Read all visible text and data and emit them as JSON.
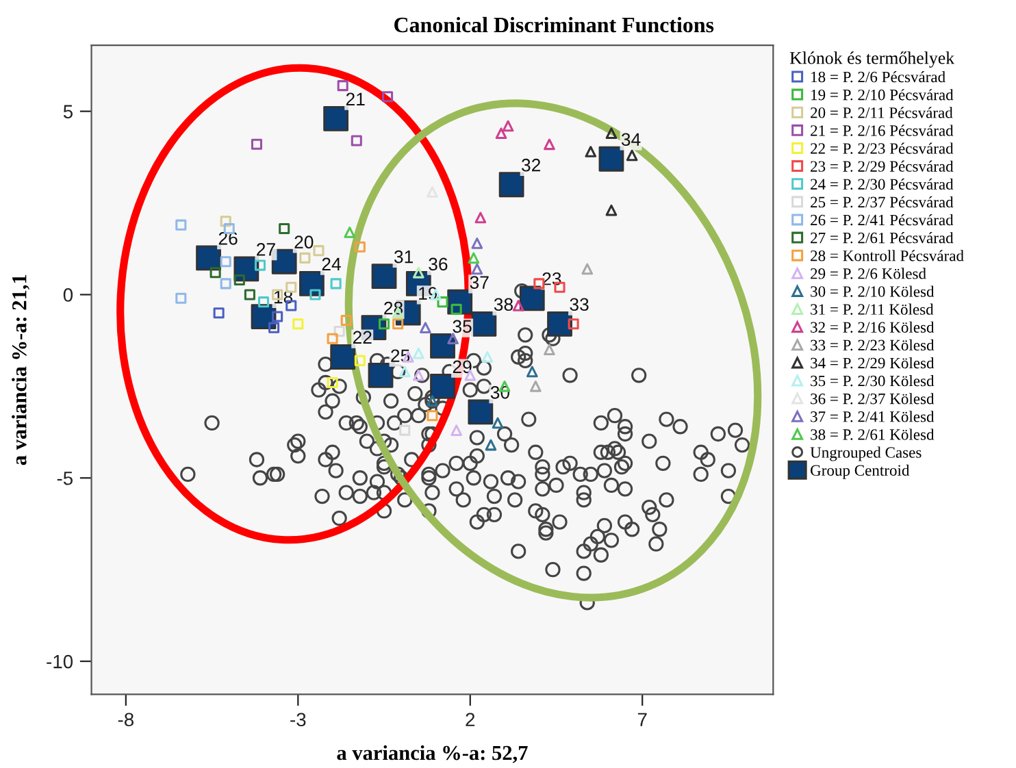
{
  "chart_data": {
    "type": "scatter",
    "title": "Canonical Discriminant Functions",
    "xlabel": "a variancia %-a: 52,7",
    "ylabel": "a variancia %-a: 21,1",
    "legend_title": "Klónok és termőhelyek",
    "legend": "right",
    "grid": false,
    "xlim": [
      -9,
      10.8
    ],
    "ylim": [
      -10.9,
      6.8
    ],
    "xticks": [
      -8,
      -3,
      2,
      7
    ],
    "yticks": [
      5,
      0,
      -5,
      -10
    ],
    "series": [
      {
        "name": "Ungrouped Cases",
        "color": "#444444",
        "marker": "circle",
        "x": [
          -5.5,
          -6.2,
          -4.2,
          -4.1,
          -3.7,
          -3.6,
          -3.0,
          -3.1,
          -3.0,
          -2.2,
          -2.0,
          -1.9,
          -2.3,
          -1.6,
          -1.8,
          -1.2,
          -1.2,
          -2.2,
          -2.2,
          -2.4,
          -1.8,
          -2.0,
          -2.2,
          -1.6,
          -1.3,
          -1.2,
          -1.0,
          -1.1,
          -0.7,
          -0.4,
          -0.1,
          -0.3,
          -0.7,
          -0.5,
          -0.7,
          -0.5,
          -0.5,
          -0.7,
          -0.5,
          -0.8,
          -0.2,
          0.1,
          -0.3,
          -0.1,
          0.0,
          0.3,
          0.1,
          -0.5,
          0.4,
          0.6,
          0.7,
          0.9,
          0.8,
          0.9,
          0.8,
          0.9,
          1.4,
          2.4,
          2.4,
          2.0,
          0.9,
          1.2,
          0.5,
          0.8,
          0.8,
          2.2,
          3.0,
          3.2,
          3.9,
          3.7,
          2.2,
          2.0,
          1.6,
          1.2,
          0.8,
          1.6,
          2.1,
          2.6,
          2.7,
          3.1,
          3.4,
          3.3,
          4.1,
          4.1,
          4.1,
          4.5,
          4.7,
          4.9,
          5.2,
          5.5,
          5.9,
          5.3,
          5.3,
          6.1,
          6.5,
          6.4,
          6.5,
          6.3,
          6.2,
          6.0,
          5.8,
          5.8,
          6.2,
          6.5,
          6.5,
          7.2,
          7.7,
          8.1,
          7.6,
          8.7,
          8.9,
          8.7,
          9.5,
          9.2,
          9.7,
          9.9,
          9.5,
          7.7,
          7.2,
          7.3,
          7.5,
          7.4,
          6.5,
          6.7,
          5.9,
          6.1,
          5.7,
          5.5,
          5.8,
          5.3,
          4.2,
          4.2,
          4.6,
          3.4,
          4.4,
          5.3,
          5.4,
          4.1,
          3.9,
          2.4,
          2.7,
          2.2,
          1.8,
          4.9,
          6.9,
          3.4,
          3.6,
          3.5,
          3.6,
          4.3,
          4.4,
          3.6,
          2.1
        ],
        "values": [
          -3.5,
          -4.9,
          -4.5,
          -5.0,
          -4.9,
          -4.9,
          -4.0,
          -4.1,
          -4.4,
          -4.5,
          -4.3,
          -4.8,
          -5.5,
          -5.4,
          -6.1,
          -5.0,
          -5.5,
          -1.9,
          -2.4,
          -2.6,
          -2.5,
          -2.9,
          -3.2,
          -3.5,
          -3.5,
          -3.6,
          -4.0,
          -2.8,
          -1.8,
          -1.9,
          -2.1,
          -2.9,
          -3.5,
          -4.0,
          -4.2,
          -4.6,
          -4.7,
          -5.1,
          -5.4,
          -5.4,
          -3.5,
          -3.3,
          -4.1,
          -4.9,
          -5.0,
          -4.5,
          -5.6,
          -5.9,
          -2.7,
          -2.2,
          -3.0,
          -3.8,
          -4.9,
          -5.4,
          -5.9,
          -2.8,
          -2.1,
          -2.0,
          -2.5,
          -2.6,
          -2.9,
          -3.1,
          -3.3,
          -3.8,
          -4.1,
          -3.9,
          -3.8,
          -4.1,
          -4.3,
          -3.4,
          -4.4,
          -4.6,
          -4.6,
          -4.8,
          -5.0,
          -5.3,
          -5.0,
          -5.1,
          -5.5,
          -5.0,
          -5.1,
          -5.6,
          -4.7,
          -4.9,
          -5.3,
          -5.2,
          -4.7,
          -4.6,
          -4.9,
          -4.9,
          -4.8,
          -5.4,
          -5.6,
          -5.2,
          -5.3,
          -4.7,
          -4.6,
          -4.3,
          -4.2,
          -4.3,
          -4.3,
          -3.5,
          -3.3,
          -3.6,
          -3.8,
          -4.0,
          -3.4,
          -3.6,
          -4.6,
          -4.3,
          -4.5,
          -4.9,
          -4.8,
          -3.8,
          -3.7,
          -4.1,
          -5.5,
          -5.6,
          -5.8,
          -6.0,
          -6.4,
          -6.8,
          -6.2,
          -6.4,
          -6.3,
          -6.7,
          -6.6,
          -6.8,
          -7.1,
          -7.0,
          -6.4,
          -6.5,
          -6.2,
          -7.0,
          -7.5,
          -7.6,
          -8.4,
          -6.0,
          -5.9,
          -6.0,
          -6.0,
          -6.2,
          -5.6,
          -2.2,
          -2.2,
          -1.7,
          -1.8,
          0.1,
          -1.1,
          -1.1,
          -1.2,
          -1.6,
          -1.8
        ]
      },
      {
        "name": "18 = P. 2/6 Pécsvárad",
        "color": "#4a5fc1",
        "marker": "square",
        "x": [
          -5.3,
          -3.6,
          -3.7,
          -3.2
        ],
        "values": [
          -0.5,
          -0.6,
          -0.9,
          -0.3
        ]
      },
      {
        "name": "19 = P. 2/10 Pécsvárad",
        "color": "#3cb83c",
        "marker": "square",
        "x": [
          1.2,
          1.6,
          -0.5
        ],
        "values": [
          -0.2,
          -0.4,
          -0.8
        ]
      },
      {
        "name": "20 = P. 2/11 Pécsvárad",
        "color": "#d6cb96",
        "marker": "square",
        "x": [
          -5.1,
          -2.4,
          -2.8,
          -3.2,
          -3.6
        ],
        "values": [
          2.0,
          1.2,
          1.0,
          0.2,
          0.0
        ]
      },
      {
        "name": "21 = P. 2/16 Pécsvárad",
        "color": "#9b4fa8",
        "marker": "square",
        "x": [
          -1.7,
          -0.4,
          -1.3,
          -4.2
        ],
        "values": [
          5.7,
          5.4,
          4.2,
          4.1
        ]
      },
      {
        "name": "22 = P. 2/23 Pécsvárad",
        "color": "#f2f23a",
        "marker": "square",
        "x": [
          -3.0,
          -2.0,
          -1.2
        ],
        "values": [
          -0.8,
          -2.4,
          -1.8
        ]
      },
      {
        "name": "23 = P. 2/29 Pécsvárad",
        "color": "#f04a4a",
        "marker": "square",
        "x": [
          4.0,
          4.6,
          5.0
        ],
        "values": [
          0.3,
          0.2,
          -0.8
        ]
      },
      {
        "name": "24 = P. 2/30 Pécsvárad",
        "color": "#4fc9c9",
        "marker": "square",
        "x": [
          -4.1,
          -1.9,
          -4.0,
          -2.5
        ],
        "values": [
          0.8,
          0.3,
          -0.2,
          0.0
        ]
      },
      {
        "name": "25 = P. 2/37 Pécsvárad",
        "color": "#d9d9d9",
        "marker": "square",
        "x": [
          -1.8,
          0.1
        ],
        "values": [
          -1.0,
          -3.7
        ]
      },
      {
        "name": "26 = P. 2/41 Pécsvárad",
        "color": "#8fb8e8",
        "marker": "square",
        "x": [
          -6.4,
          -6.4,
          -5.1,
          -5.1,
          -5.0
        ],
        "values": [
          1.9,
          -0.1,
          0.9,
          0.3,
          1.8
        ]
      },
      {
        "name": "27 = P. 2/61 Pécsvárad",
        "color": "#2e6b2e",
        "marker": "square",
        "x": [
          -3.4,
          -5.4,
          -4.7,
          -4.4
        ],
        "values": [
          1.8,
          0.6,
          0.4,
          0.0
        ]
      },
      {
        "name": "28 = Kontroll Pécsvárad",
        "color": "#f5a040",
        "marker": "square",
        "x": [
          -1.2,
          -2.0,
          -1.6,
          -0.1,
          0.9
        ],
        "values": [
          1.3,
          -1.2,
          -0.7,
          -0.8,
          -3.3
        ]
      },
      {
        "name": "29 = P. 2/6 Kölesd",
        "color": "#d2b4f0",
        "marker": "triangle",
        "x": [
          0.2,
          0.5,
          2.0,
          1.6
        ],
        "values": [
          -1.7,
          -2.2,
          -2.2,
          -3.7
        ]
      },
      {
        "name": "30 = P. 2/10 Kölesd",
        "color": "#2e6f8f",
        "marker": "triangle",
        "x": [
          3.8,
          2.6,
          2.8,
          0.9
        ],
        "values": [
          -2.1,
          -4.1,
          -3.5,
          -2.9
        ]
      },
      {
        "name": "31 = P. 2/11 Kölesd",
        "color": "#b4f0b4",
        "marker": "triangle",
        "x": [
          0.5,
          -0.1
        ],
        "values": [
          0.6,
          -0.5
        ]
      },
      {
        "name": "32 = P. 2/16 Kölesd",
        "color": "#d0408f",
        "marker": "triangle",
        "x": [
          2.9,
          3.1,
          4.3,
          2.3,
          3.4
        ],
        "values": [
          4.4,
          4.6,
          4.1,
          2.1,
          -0.3
        ]
      },
      {
        "name": "33 = P. 2/23 Kölesd",
        "color": "#a8a8a8",
        "marker": "triangle",
        "x": [
          5.4,
          4.3,
          3.9
        ],
        "values": [
          0.7,
          -1.5,
          -2.5
        ]
      },
      {
        "name": "34 = P. 2/29 Kölesd",
        "color": "#303030",
        "marker": "triangle",
        "x": [
          6.1,
          5.5,
          6.7,
          6.1
        ],
        "values": [
          4.4,
          3.9,
          3.8,
          2.3
        ]
      },
      {
        "name": "35 = P. 2/30 Kölesd",
        "color": "#b4f0f0",
        "marker": "triangle",
        "x": [
          1.0,
          0.5,
          2.5,
          0.1
        ],
        "values": [
          0.0,
          -1.6,
          -1.7,
          -2.1
        ]
      },
      {
        "name": "36 = P. 2/37 Kölesd",
        "color": "#e4e4e4",
        "marker": "triangle",
        "x": [
          0.9
        ],
        "values": [
          2.8
        ]
      },
      {
        "name": "37 = P. 2/41 Kölesd",
        "color": "#7a70c0",
        "marker": "triangle",
        "x": [
          2.2,
          2.2,
          0.7,
          1.5
        ],
        "values": [
          1.4,
          0.7,
          -0.9,
          -1.2
        ]
      },
      {
        "name": "38 = P. 2/61 Kölesd",
        "color": "#50c850",
        "marker": "triangle",
        "x": [
          2.1,
          3.0,
          -1.5
        ],
        "values": [
          1.0,
          -2.5,
          1.7
        ]
      },
      {
        "name": "Group Centroid",
        "color": "#0b3f78",
        "marker": "square",
        "x": [
          -4.0,
          0.2,
          -3.4,
          -1.9,
          -1.7,
          3.8,
          -2.6,
          -0.6,
          -5.6,
          -4.5,
          -0.8,
          1.2,
          2.3,
          -0.5,
          3.2,
          4.6,
          6.1,
          1.2,
          0.5,
          1.7,
          2.4
        ],
        "values": [
          -0.6,
          -0.5,
          0.9,
          4.8,
          -1.7,
          -0.1,
          0.3,
          -2.2,
          1.0,
          0.7,
          -0.9,
          -2.5,
          -3.2,
          0.5,
          3.0,
          -0.8,
          3.7,
          -1.4,
          0.3,
          -0.2,
          -0.8
        ]
      }
    ],
    "annotations": [
      {
        "text": "18",
        "x": -4.0,
        "y": -0.6
      },
      {
        "text": "19",
        "x": 0.2,
        "y": -0.5
      },
      {
        "text": "20",
        "x": -3.4,
        "y": 0.9
      },
      {
        "text": "21",
        "x": -1.9,
        "y": 4.8
      },
      {
        "text": "22",
        "x": -1.7,
        "y": -1.7
      },
      {
        "text": "23",
        "x": 3.8,
        "y": -0.1
      },
      {
        "text": "24",
        "x": -2.6,
        "y": 0.3
      },
      {
        "text": "25",
        "x": -0.6,
        "y": -2.2
      },
      {
        "text": "26",
        "x": -5.6,
        "y": 1.0
      },
      {
        "text": "27",
        "x": -4.5,
        "y": 0.7
      },
      {
        "text": "28",
        "x": -0.8,
        "y": -0.9
      },
      {
        "text": "29",
        "x": 1.2,
        "y": -2.5
      },
      {
        "text": "30",
        "x": 2.3,
        "y": -3.2
      },
      {
        "text": "31",
        "x": -0.5,
        "y": 0.5
      },
      {
        "text": "32",
        "x": 3.2,
        "y": 3.0
      },
      {
        "text": "33",
        "x": 4.6,
        "y": -0.8
      },
      {
        "text": "34",
        "x": 6.1,
        "y": 3.7
      },
      {
        "text": "35",
        "x": 1.2,
        "y": -1.4
      },
      {
        "text": "36",
        "x": 0.5,
        "y": 0.3
      },
      {
        "text": "37",
        "x": 1.7,
        "y": -0.2
      },
      {
        "text": "38",
        "x": 2.4,
        "y": -0.8
      }
    ]
  }
}
